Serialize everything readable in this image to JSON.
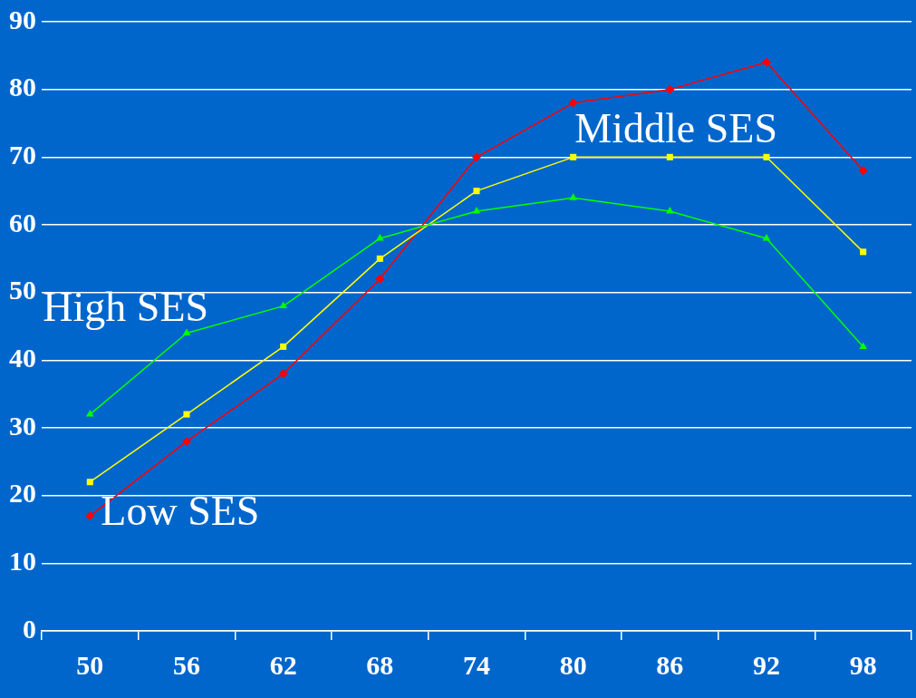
{
  "chart_data": {
    "type": "line",
    "categories": [
      "50",
      "56",
      "62",
      "68",
      "74",
      "80",
      "86",
      "92",
      "98"
    ],
    "series": [
      {
        "name": "High SES",
        "color": "#00ff00",
        "marker": "triangle",
        "values": [
          32,
          44,
          48,
          58,
          62,
          64,
          62,
          58,
          42
        ]
      },
      {
        "name": "Middle SES",
        "color": "#ffff00",
        "marker": "square",
        "values": [
          22,
          32,
          42,
          55,
          65,
          70,
          70,
          70,
          56
        ]
      },
      {
        "name": "Low SES",
        "color": "#ff0000",
        "marker": "diamond",
        "values": [
          17,
          28,
          38,
          52,
          70,
          78,
          80,
          84,
          68
        ]
      }
    ],
    "ylim": [
      0,
      90
    ],
    "yticks": [
      0,
      10,
      20,
      30,
      40,
      50,
      60,
      70,
      80,
      90
    ],
    "grid": "y",
    "legend": false
  }
}
